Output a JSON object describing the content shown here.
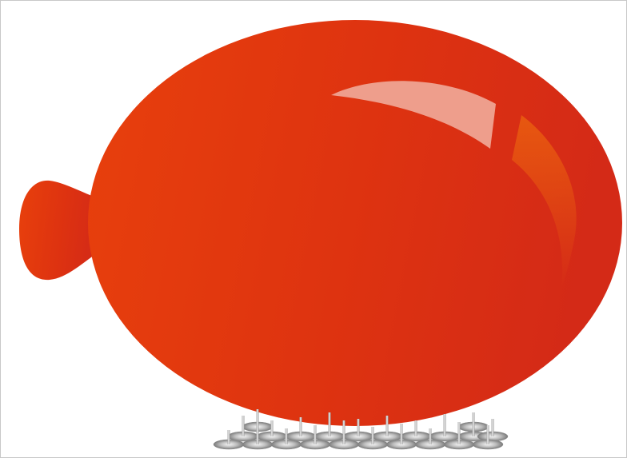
{
  "scene": {
    "subject": "balloon-over-pins",
    "colors": {
      "balloon_light": "#e8400c",
      "balloon_mid": "#de3310",
      "balloon_dark": "#d42a17",
      "highlight": "#ee9e8c",
      "rim_light": "#e85a10",
      "pin_light": "#f5f5f5",
      "pin_dark": "#7a7a7a",
      "frame_border": "#c8c8c8"
    },
    "pins": {
      "rows": 3,
      "count": 27
    }
  }
}
